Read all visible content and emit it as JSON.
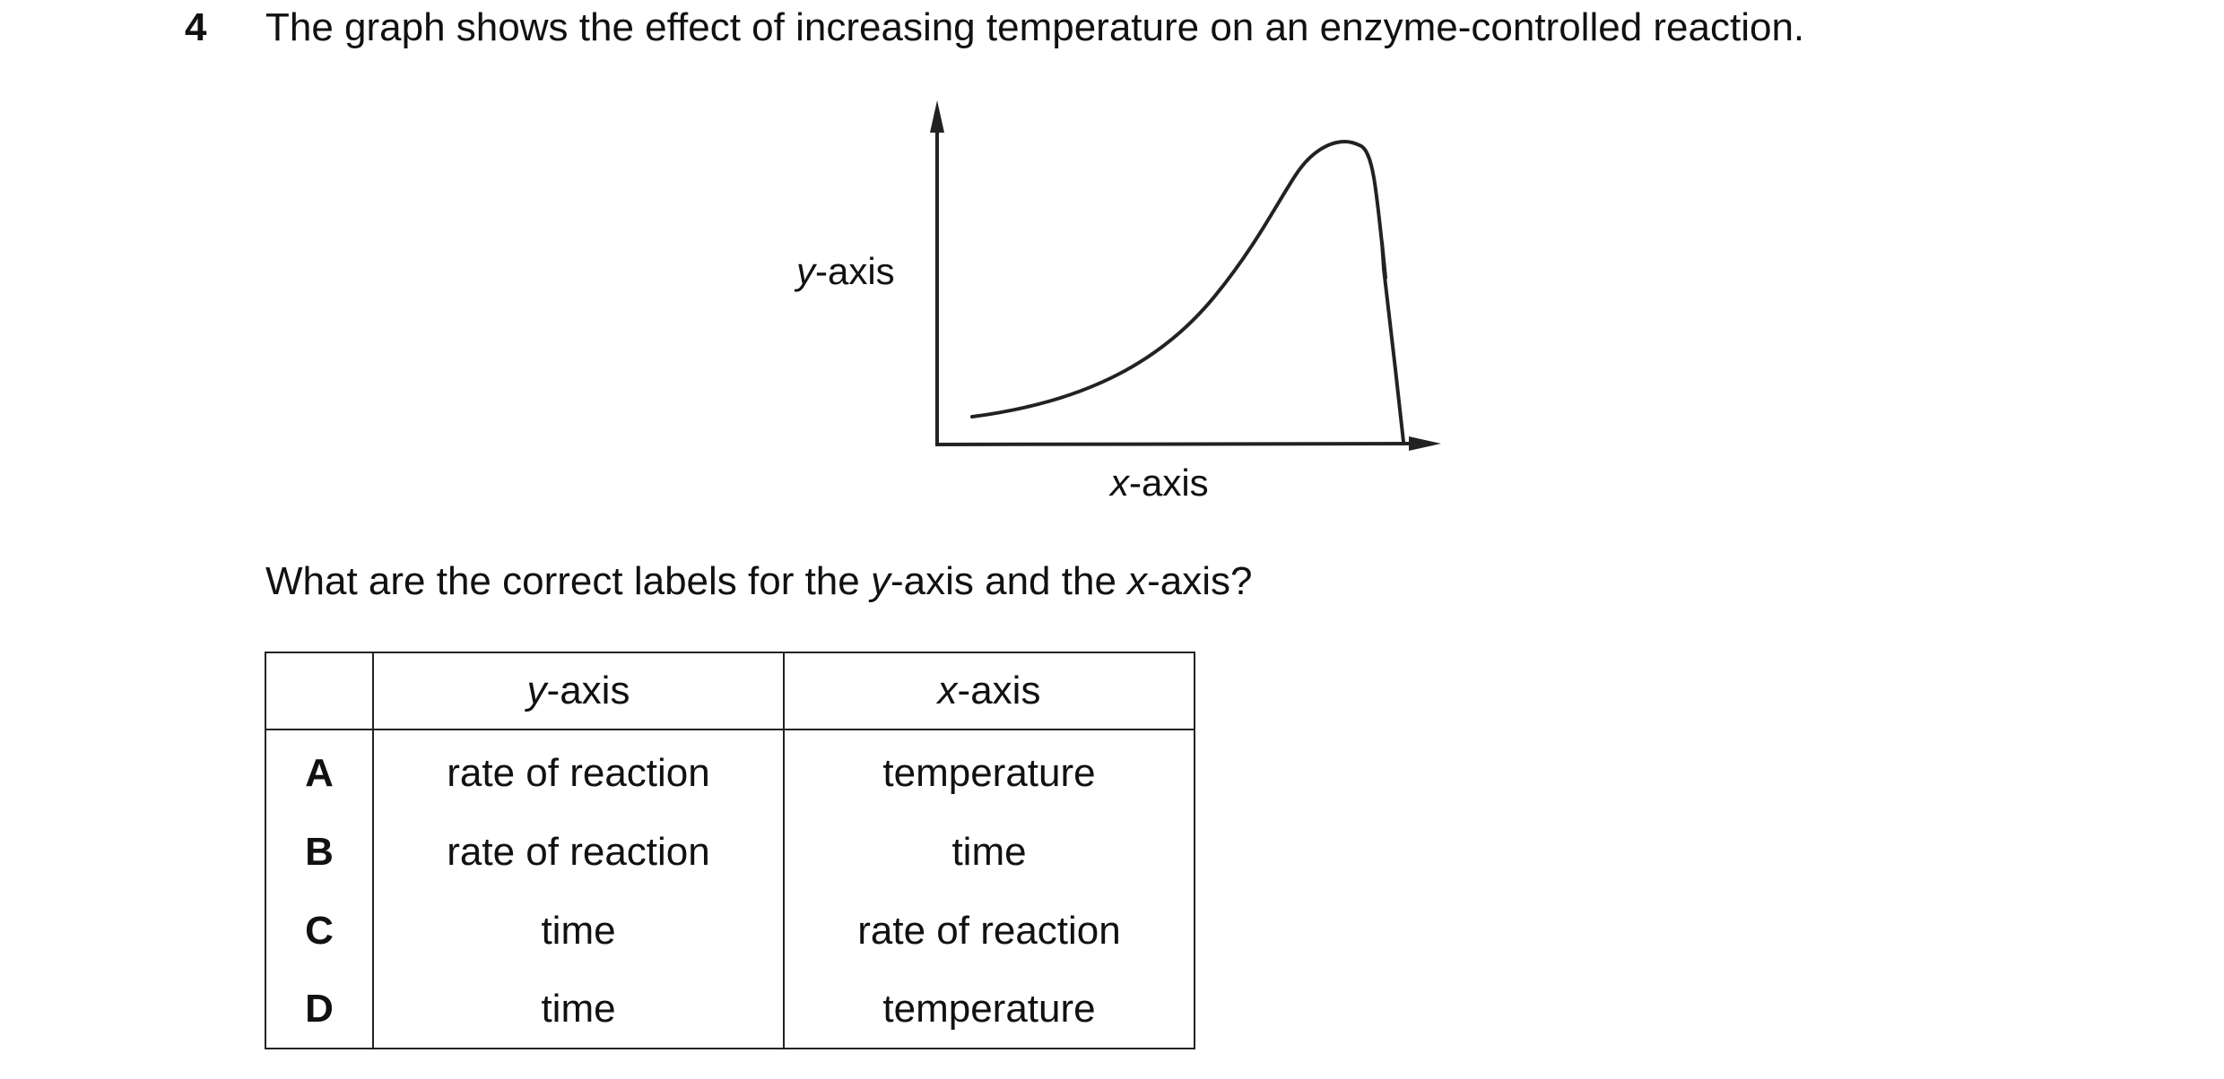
{
  "question": {
    "number": "4",
    "text": "The graph shows the effect of increasing temperature on an enzyme-controlled reaction.",
    "prompt_parts": [
      "What are the correct labels for the ",
      "y",
      "-axis and the ",
      "x",
      "-axis?"
    ]
  },
  "graph": {
    "y_label": {
      "var": "y",
      "suffix": "-axis"
    },
    "x_label": {
      "var": "x",
      "suffix": "-axis"
    },
    "line_color": "#222222"
  },
  "table": {
    "headers": [
      {
        "var": "",
        "suffix": ""
      },
      {
        "var": "y",
        "suffix": "-axis"
      },
      {
        "var": "x",
        "suffix": "-axis"
      }
    ],
    "rows": [
      {
        "letter": "A",
        "y_axis": "rate of reaction",
        "x_axis": "temperature"
      },
      {
        "letter": "B",
        "y_axis": "rate of reaction",
        "x_axis": "time"
      },
      {
        "letter": "C",
        "y_axis": "time",
        "x_axis": "rate of reaction"
      },
      {
        "letter": "D",
        "y_axis": "time",
        "x_axis": "temperature"
      }
    ]
  }
}
